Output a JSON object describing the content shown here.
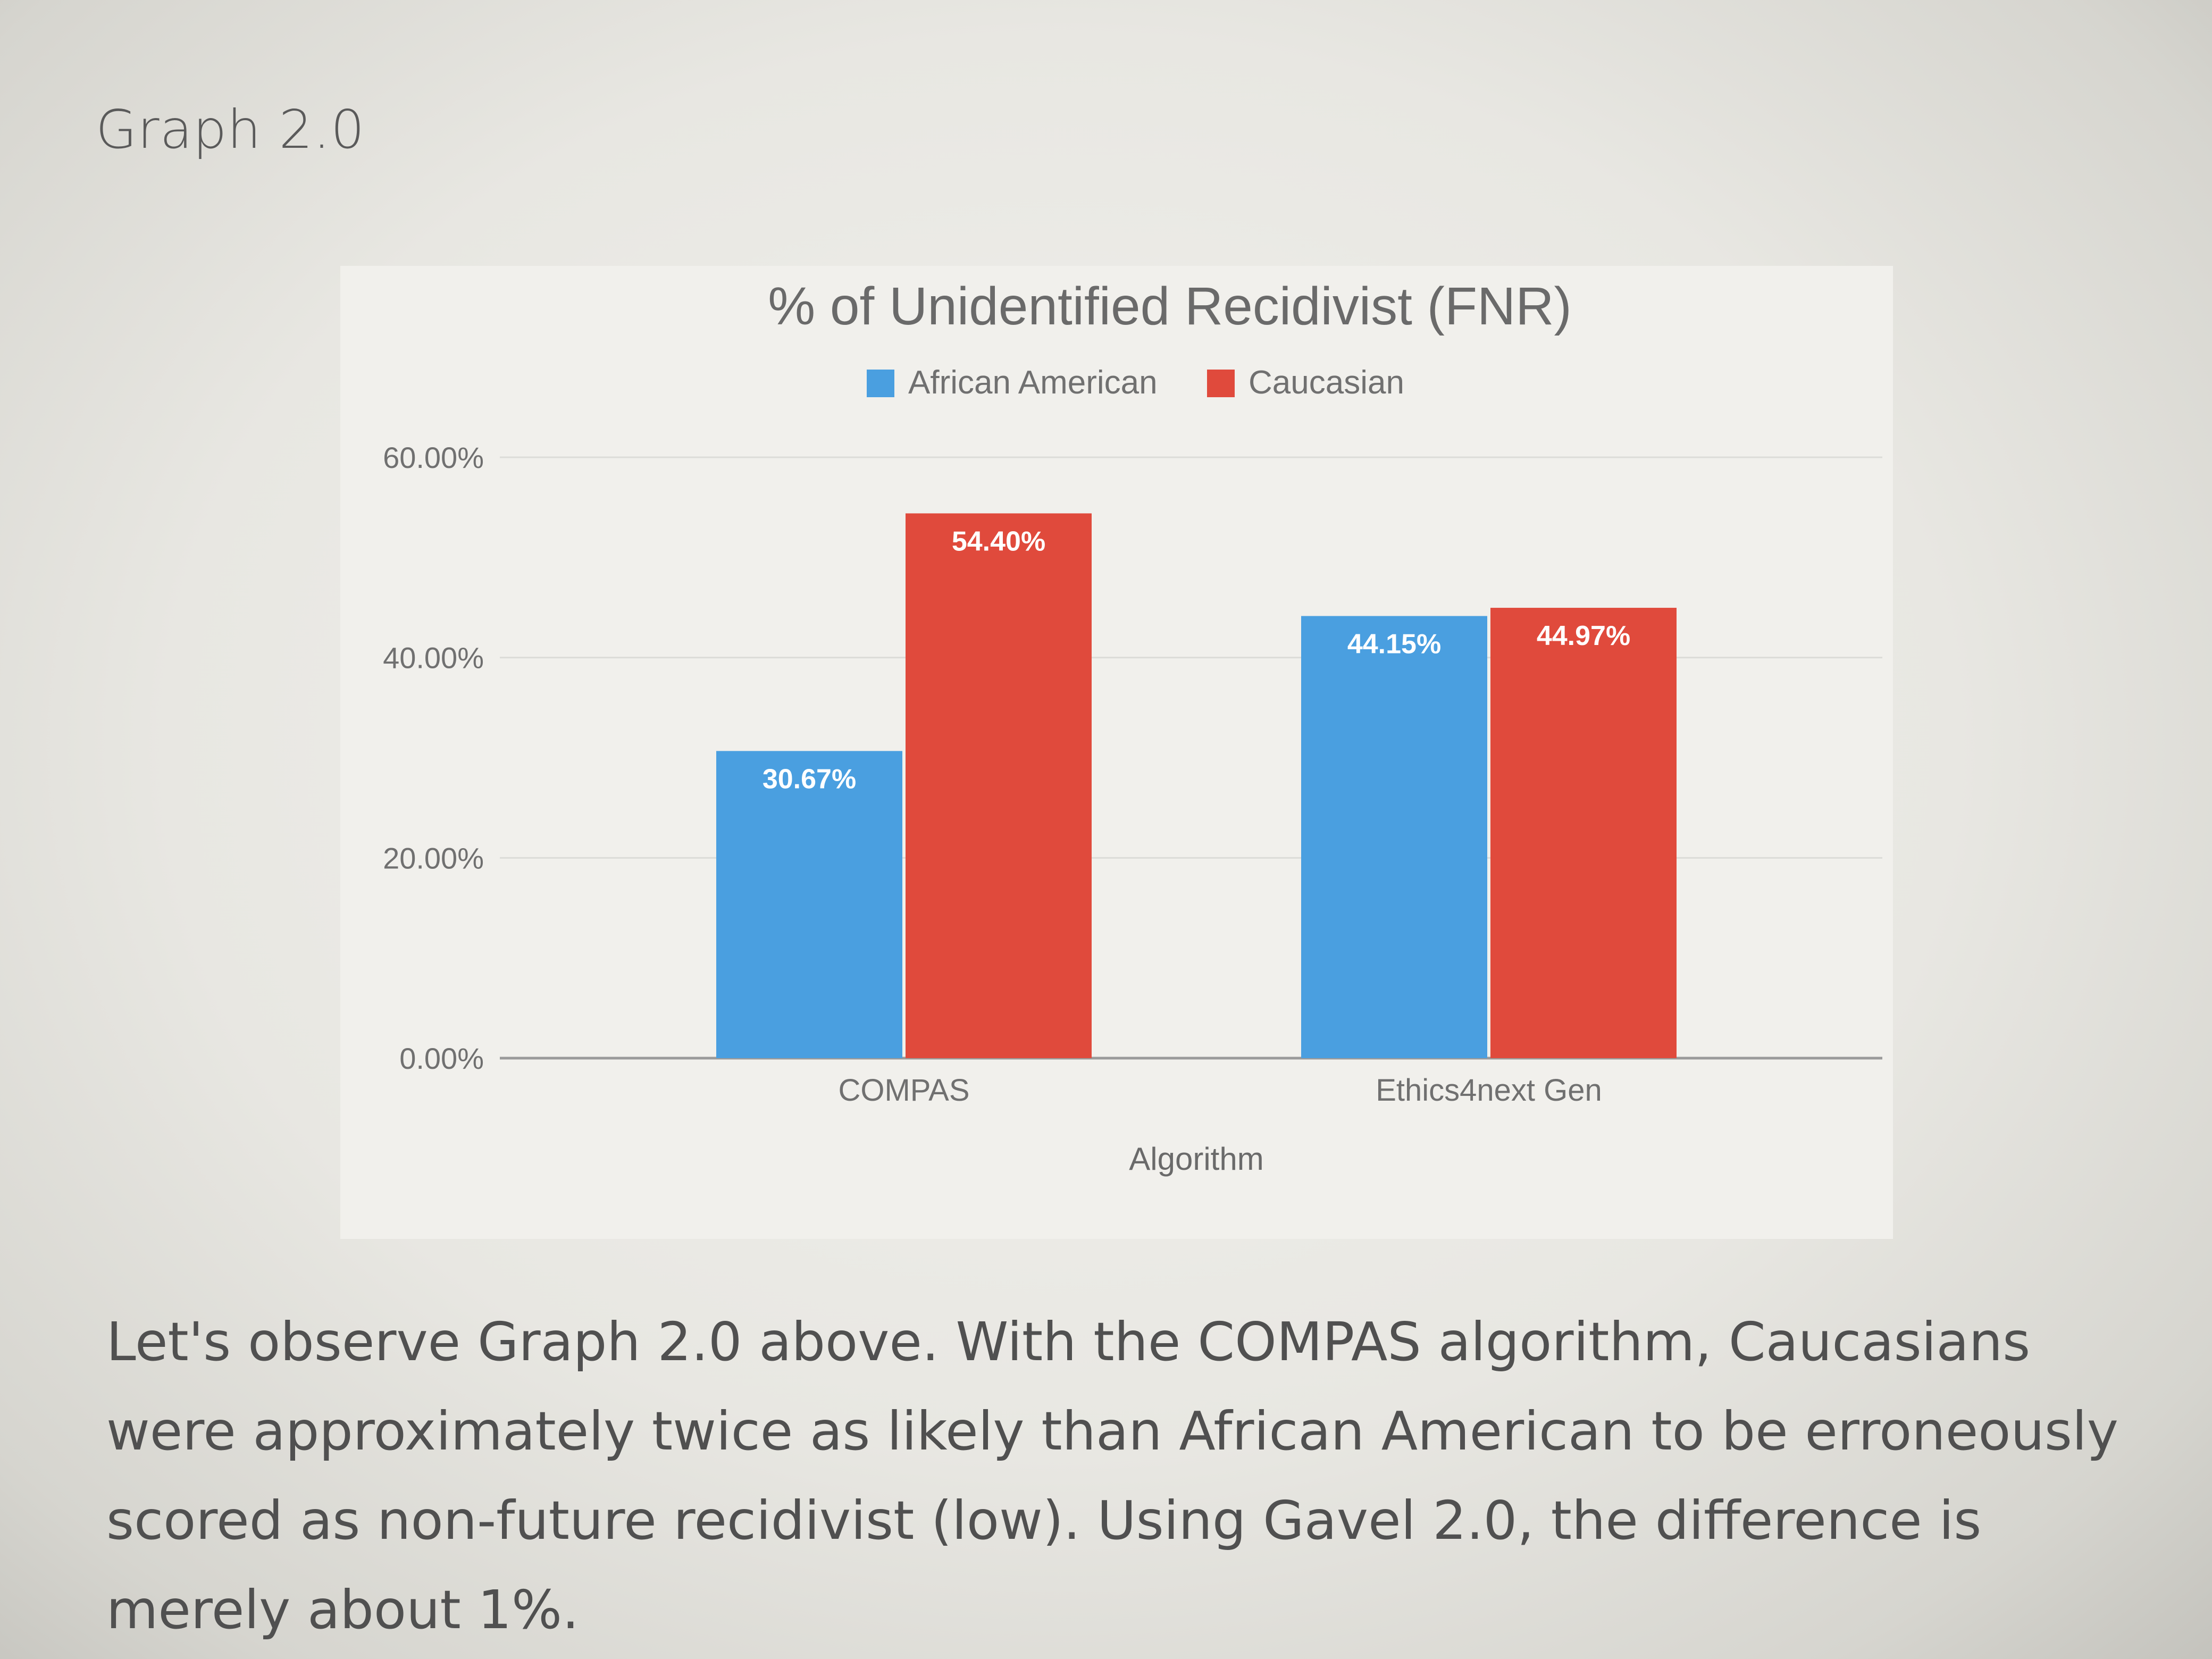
{
  "heading": "Graph 2.0",
  "paragraph": "Let's observe Graph 2.0 above. With  the COMPAS algorithm, Caucasians were approximately twice as likely than African American to be erroneously scored as non-future recidivist (low). Using Gavel 2.0,  the difference is merely about 1%.",
  "chart_data": {
    "type": "bar",
    "title": "% of Unidentified Recidivist (FNR)",
    "xlabel": "Algorithm",
    "ylabel": "",
    "categories": [
      "COMPAS",
      "Ethics4next Gen"
    ],
    "series": [
      {
        "name": "African American",
        "values": [
          30.67,
          44.15
        ],
        "labels": [
          "30.67%",
          "44.15%"
        ],
        "color": "#4a9fe0"
      },
      {
        "name": "Caucasian",
        "values": [
          54.4,
          44.97
        ],
        "labels": [
          "54.40%",
          "44.97%"
        ],
        "color": "#e04a3c"
      }
    ],
    "ylim": [
      0,
      60
    ],
    "yticks": [
      0,
      20,
      40,
      60
    ],
    "ytick_labels": [
      "0.00%",
      "20.00%",
      "40.00%",
      "60.00%"
    ],
    "grid": true,
    "legend_position": "top-center"
  }
}
